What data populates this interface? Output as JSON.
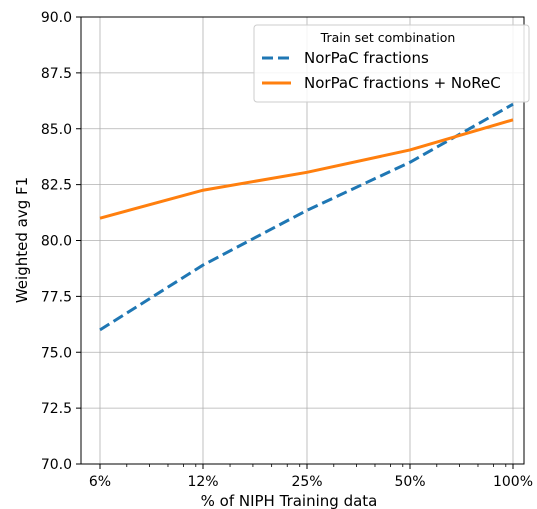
{
  "chart_data": {
    "type": "line",
    "categories": [
      "6%",
      "12%",
      "25%",
      "50%",
      "100%"
    ],
    "xlabel": "% of NIPH Training data",
    "ylabel": "Weighted avg F1",
    "ylim": [
      70.0,
      90.0
    ],
    "yticks": [
      "70.0",
      "72.5",
      "75.0",
      "77.5",
      "80.0",
      "82.5",
      "85.0",
      "87.5",
      "90.0"
    ],
    "grid": true,
    "legend": {
      "title": "Train set combination",
      "placement": "top-right"
    },
    "series": [
      {
        "name": "NorPaC fractions",
        "values": [
          76.0,
          78.9,
          81.35,
          83.5,
          86.1
        ],
        "color": "#1f77b4",
        "style": "dashed"
      },
      {
        "name": "NorPaC fractions + NoReC",
        "values": [
          81.0,
          82.25,
          83.05,
          84.05,
          85.4
        ],
        "color": "#ff7f0e",
        "style": "solid"
      }
    ]
  }
}
